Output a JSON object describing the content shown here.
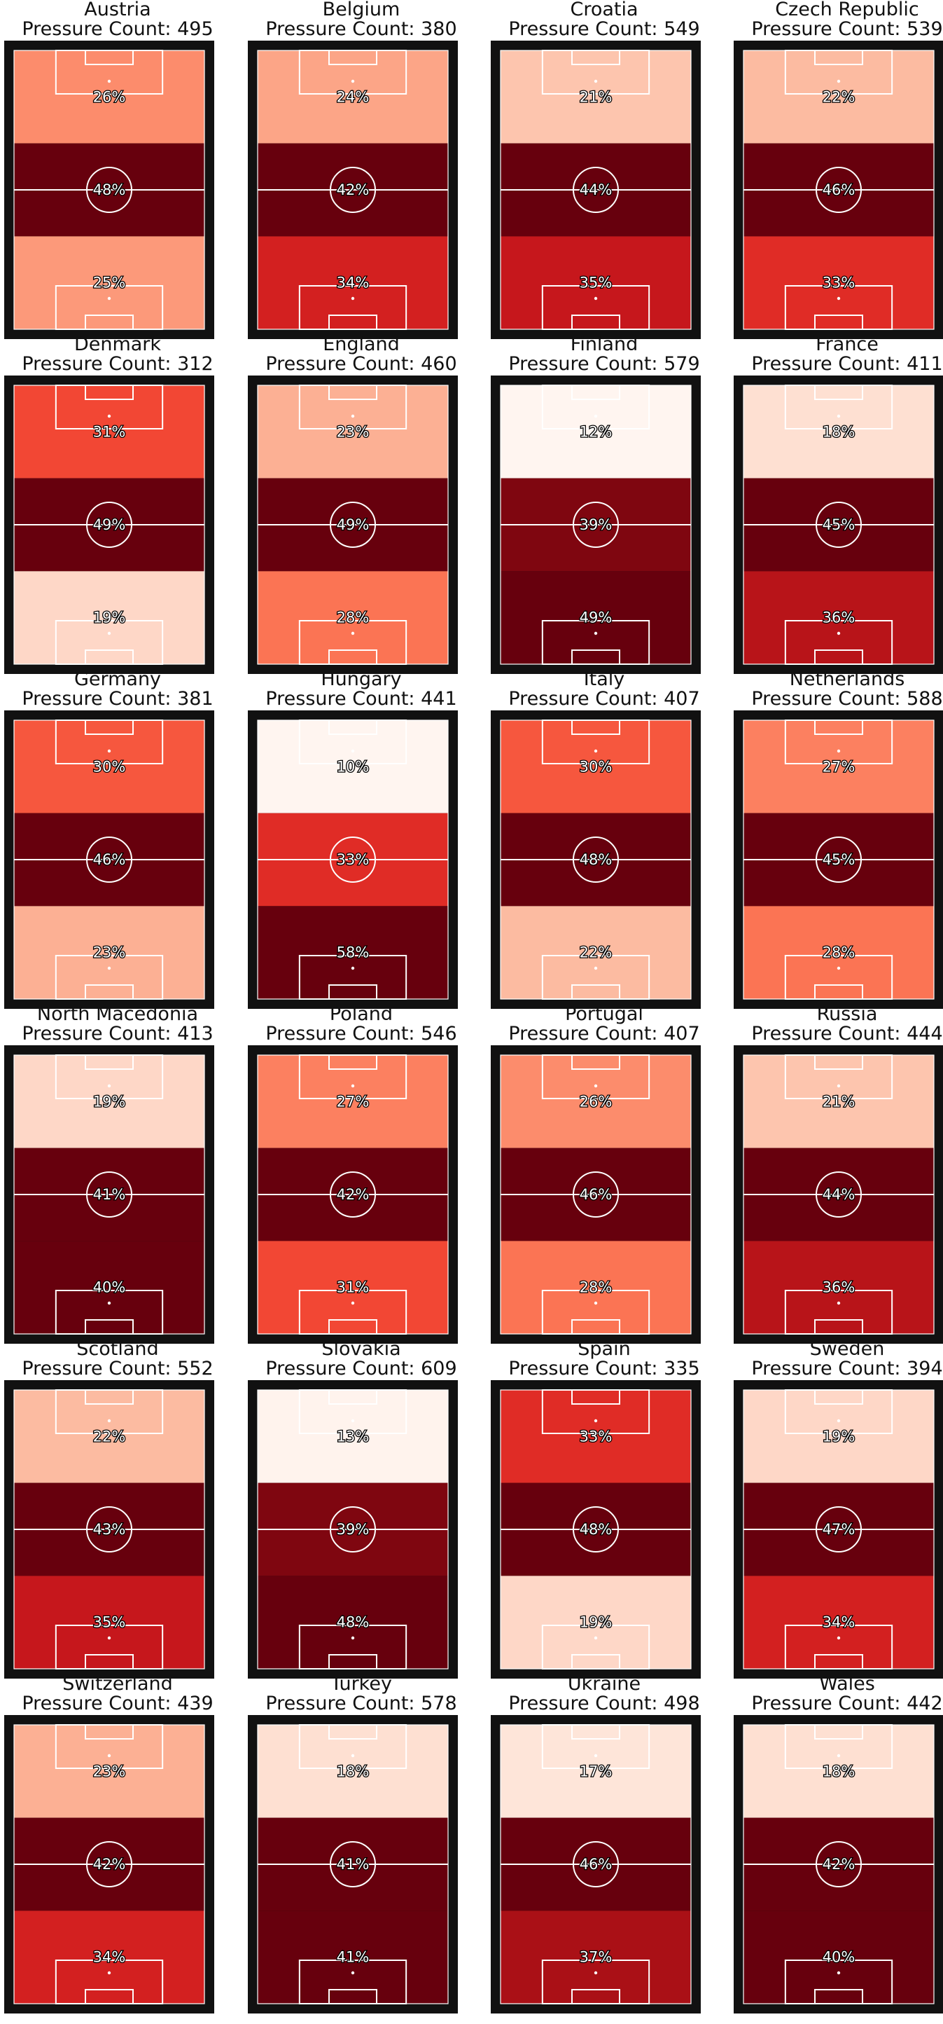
{
  "page": {
    "count_prefix": "Pressure Count: "
  },
  "chart_data": {
    "type": "heatmap",
    "colormap": "Reds",
    "value_range": [
      0,
      50
    ],
    "pitch_colors": {
      "border": "#111111",
      "lines": "#ffffff"
    },
    "zones": [
      "top third",
      "middle third",
      "bottom third"
    ],
    "panels": [
      {
        "team": "Austria",
        "count": 495,
        "zones": [
          26,
          48,
          25
        ]
      },
      {
        "team": "Belgium",
        "count": 380,
        "zones": [
          24,
          42,
          34
        ]
      },
      {
        "team": "Croatia",
        "count": 549,
        "zones": [
          21,
          44,
          35
        ]
      },
      {
        "team": "Czech Republic",
        "count": 539,
        "zones": [
          22,
          46,
          33
        ]
      },
      {
        "team": "Denmark",
        "count": 312,
        "zones": [
          31,
          49,
          19
        ]
      },
      {
        "team": "England",
        "count": 460,
        "zones": [
          23,
          49,
          28
        ]
      },
      {
        "team": "Finland",
        "count": 579,
        "zones": [
          12,
          39,
          49
        ]
      },
      {
        "team": "France",
        "count": 411,
        "zones": [
          18,
          45,
          36
        ]
      },
      {
        "team": "Germany",
        "count": 381,
        "zones": [
          30,
          46,
          23
        ]
      },
      {
        "team": "Hungary",
        "count": 441,
        "zones": [
          10,
          33,
          58
        ]
      },
      {
        "team": "Italy",
        "count": 407,
        "zones": [
          30,
          48,
          22
        ]
      },
      {
        "team": "Netherlands",
        "count": 588,
        "zones": [
          27,
          45,
          28
        ]
      },
      {
        "team": "North Macedonia",
        "count": 413,
        "zones": [
          19,
          41,
          40
        ]
      },
      {
        "team": "Poland",
        "count": 546,
        "zones": [
          27,
          42,
          31
        ]
      },
      {
        "team": "Portugal",
        "count": 407,
        "zones": [
          26,
          46,
          28
        ]
      },
      {
        "team": "Russia",
        "count": 444,
        "zones": [
          21,
          44,
          36
        ]
      },
      {
        "team": "Scotland",
        "count": 552,
        "zones": [
          22,
          43,
          35
        ]
      },
      {
        "team": "Slovakia",
        "count": 609,
        "zones": [
          13,
          39,
          48
        ]
      },
      {
        "team": "Spain",
        "count": 335,
        "zones": [
          33,
          48,
          19
        ]
      },
      {
        "team": "Sweden",
        "count": 394,
        "zones": [
          19,
          47,
          34
        ]
      },
      {
        "team": "Switzerland",
        "count": 439,
        "zones": [
          23,
          42,
          34
        ]
      },
      {
        "team": "Turkey",
        "count": 578,
        "zones": [
          18,
          41,
          41
        ]
      },
      {
        "team": "Ukraine",
        "count": 498,
        "zones": [
          17,
          46,
          37
        ]
      },
      {
        "team": "Wales",
        "count": 442,
        "zones": [
          18,
          42,
          40
        ]
      }
    ]
  }
}
